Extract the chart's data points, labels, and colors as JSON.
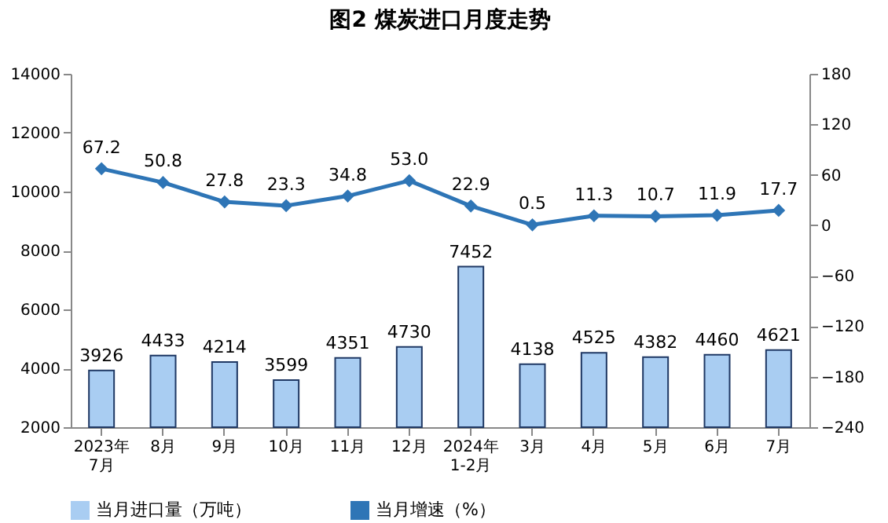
{
  "chart_data": {
    "type": "bar",
    "title": "图2  煤炭进口月度走势",
    "categories": [
      "2023年\n7月",
      "8月",
      "9月",
      "10月",
      "11月",
      "12月",
      "2024年\n1-2月",
      "3月",
      "4月",
      "5月",
      "6月",
      "7月"
    ],
    "series": [
      {
        "name": "当月进口量（万吨）",
        "color": "#a9cdf2",
        "values": [
          3926,
          4433,
          4214,
          3599,
          4351,
          4730,
          7452,
          4138,
          4525,
          4382,
          4460,
          4621
        ]
      },
      {
        "name": "当月增速（%）",
        "type": "line",
        "axis": "y2",
        "color": "#2e75b6",
        "values": [
          67.2,
          50.8,
          27.8,
          23.3,
          34.8,
          53.0,
          22.9,
          0.5,
          11.3,
          10.7,
          11.9,
          17.7
        ],
        "value_labels": [
          "67.2",
          "50.8",
          "27.8",
          "23.3",
          "34.8",
          "53.0",
          "22.9",
          "0.5",
          "11.3",
          "10.7",
          "11.9",
          "17.7"
        ]
      }
    ],
    "ylim": [
      2000,
      14000
    ],
    "yticks": [
      2000,
      4000,
      6000,
      8000,
      10000,
      12000,
      14000
    ],
    "y2lim": [
      -240,
      180
    ],
    "y2ticks": [
      -240,
      -180,
      -120,
      -60,
      0,
      60,
      120,
      180
    ],
    "data_labels": true,
    "grid": false,
    "legend": "bottom",
    "marker": "diamond",
    "line_style": "solid"
  }
}
